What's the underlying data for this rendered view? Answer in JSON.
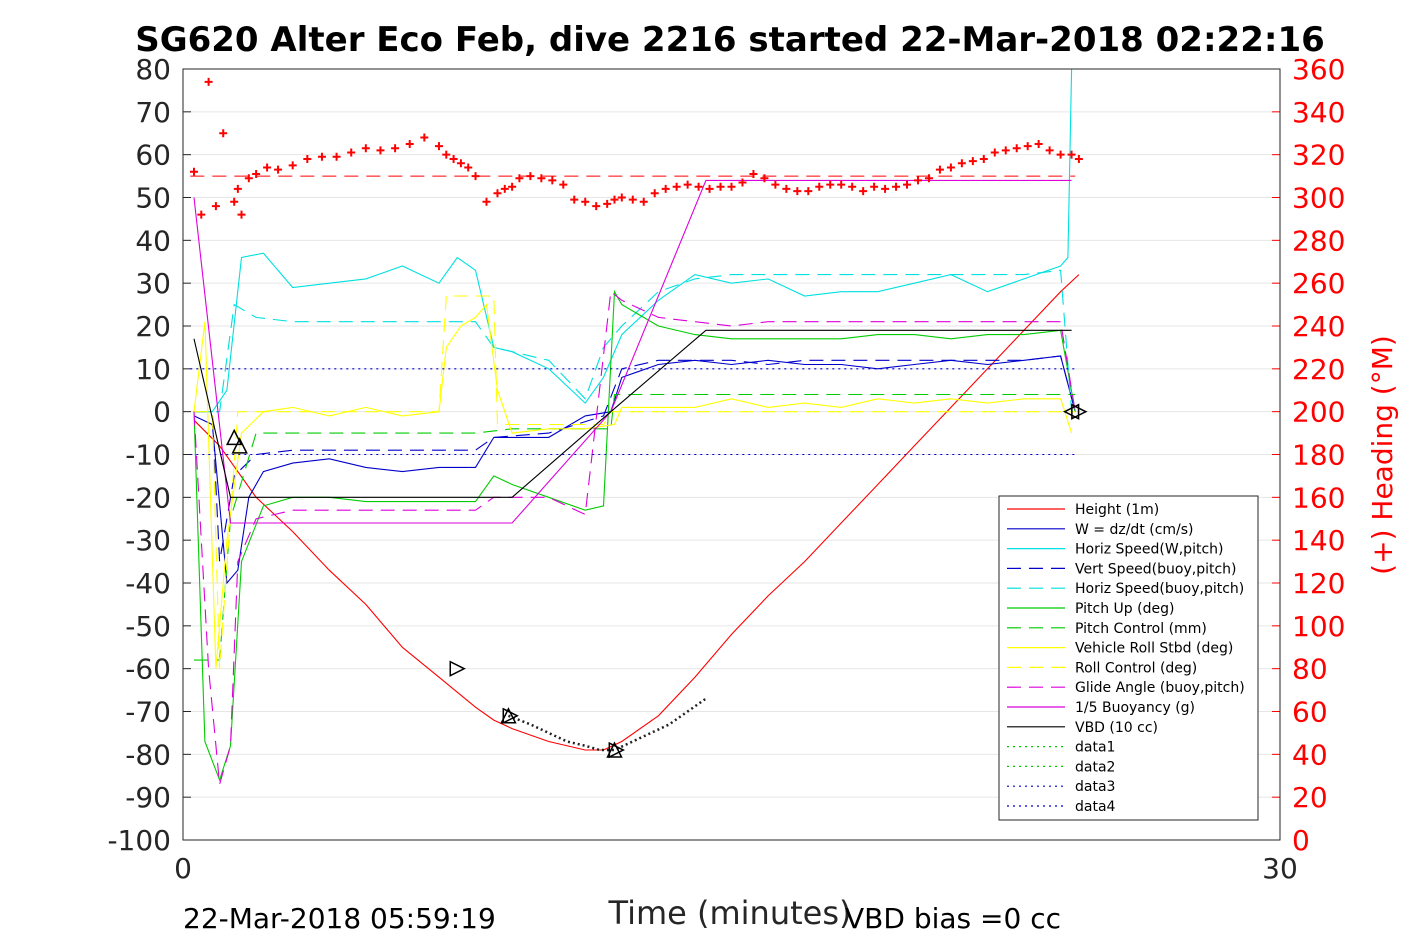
{
  "chart_data": {
    "type": "line",
    "title": "SG620 Alter Eco Feb, dive 2216 started 22-Mar-2018 02:22:16",
    "xlabel": "Time (minutes)",
    "ylabel": "",
    "y2label": "(+) Heading (°M)",
    "xlim": [
      0,
      30
    ],
    "ylim": [
      -100,
      80
    ],
    "y2lim": [
      0,
      360
    ],
    "x_ticks": [
      "0",
      "30"
    ],
    "y_ticks": [
      "80",
      "70",
      "60",
      "50",
      "40",
      "30",
      "20",
      "10",
      "0",
      "-10",
      "-20",
      "-30",
      "-40",
      "-50",
      "-60",
      "-70",
      "-80",
      "-90",
      "-100"
    ],
    "y2_ticks": [
      "360",
      "340",
      "320",
      "300",
      "280",
      "260",
      "240",
      "220",
      "200",
      "180",
      "160",
      "140",
      "120",
      "100",
      "80",
      "60",
      "40",
      "20",
      "0"
    ],
    "grid": "horizontal",
    "legend_position": "bottom-right",
    "footer_left": "22-Mar-2018 05:59:19",
    "footer_right": "VBD bias =0 cc",
    "series": [
      {
        "name": "Height (1m)",
        "color": "#ff0000",
        "style": "solid",
        "x": [
          0.3,
          1.0,
          1.5,
          2.0,
          3.0,
          4.0,
          5.0,
          6.0,
          7.0,
          8.0,
          8.5,
          9.0,
          10.0,
          11.0,
          11.5,
          12.0,
          13.0,
          14.0,
          15.0,
          16.0,
          17.0,
          18.0,
          19.0,
          20.0,
          21.0,
          22.0,
          23.0,
          24.0,
          24.5
        ],
        "y": [
          -2,
          -8,
          -14,
          -20,
          -28,
          -37,
          -45,
          -55,
          -62,
          -69,
          -72,
          -74,
          -77,
          -79,
          -79,
          -77,
          -71,
          -62,
          -52,
          -43,
          -35,
          -26,
          -17,
          -8,
          1,
          10,
          19,
          28,
          32
        ]
      },
      {
        "name": "W = dz/dt (cm/s)",
        "color": "#0000cc",
        "style": "solid",
        "x": [
          0.3,
          0.8,
          1.2,
          1.5,
          1.8,
          2.2,
          3,
          4,
          5,
          6,
          7,
          8,
          8.5,
          9,
          10,
          11,
          11.7,
          12,
          13,
          14,
          15,
          16,
          17,
          18,
          19,
          20,
          21,
          22,
          23,
          24,
          24.4
        ],
        "y": [
          -1,
          -3,
          -40,
          -37,
          -20,
          -14,
          -12,
          -11,
          -13,
          -14,
          -13,
          -13,
          -6,
          -6,
          -6,
          -1,
          0,
          8,
          11,
          12,
          11,
          12,
          11,
          11,
          10,
          11,
          12,
          11,
          12,
          13,
          0
        ]
      },
      {
        "name": "Horiz Speed(W,pitch)",
        "color": "#00e0e0",
        "style": "solid",
        "x": [
          0.3,
          0.8,
          1.2,
          1.6,
          2.2,
          3,
          4,
          5,
          6,
          7,
          7.5,
          8,
          8.5,
          9,
          10,
          11,
          11.5,
          12,
          13,
          14,
          15,
          16,
          17,
          18,
          19,
          20,
          21,
          22,
          23,
          24,
          24.2,
          24.3
        ],
        "y": [
          0,
          0,
          5,
          36,
          37,
          29,
          30,
          31,
          34,
          30,
          36,
          33,
          15,
          14,
          10,
          2,
          8,
          18,
          26,
          32,
          30,
          31,
          27,
          28,
          28,
          30,
          32,
          28,
          31,
          34,
          36,
          80
        ]
      },
      {
        "name": "Vert Speed(buoy,pitch)",
        "color": "#0000cc",
        "style": "dash",
        "x": [
          0.3,
          0.8,
          1.0,
          1.4,
          2.0,
          3,
          4,
          5,
          6,
          7,
          8,
          8.5,
          10,
          11.5,
          12,
          13,
          14,
          15,
          16,
          17,
          18,
          19,
          20,
          21,
          22,
          23,
          24,
          24.4
        ],
        "y": [
          0,
          0,
          -35,
          -15,
          -10,
          -9,
          -9,
          -9,
          -9,
          -9,
          -9,
          -6,
          -5,
          -1,
          10,
          12,
          12,
          12,
          11,
          12,
          12,
          12,
          12,
          12,
          12,
          12,
          13,
          0
        ]
      },
      {
        "name": "Horiz Speed(buoy,pitch)",
        "color": "#00e0e0",
        "style": "dash",
        "x": [
          0.3,
          1.0,
          1.4,
          2.0,
          3,
          4,
          5,
          6,
          7,
          8,
          8.5,
          10,
          11,
          11.5,
          12,
          13,
          14,
          15,
          16,
          17,
          18,
          19,
          20,
          21,
          22,
          23,
          24,
          24.3
        ],
        "y": [
          0,
          0,
          25,
          22,
          21,
          21,
          21,
          21,
          21,
          21,
          15,
          12,
          3,
          15,
          20,
          28,
          31,
          32,
          32,
          32,
          32,
          32,
          32,
          32,
          32,
          32,
          33,
          0
        ]
      },
      {
        "name": "Pitch Up (deg)",
        "color": "#00cc00",
        "style": "solid",
        "x": [
          0.3,
          0.6,
          1.0,
          1.3,
          1.6,
          2.2,
          3,
          4,
          5,
          6,
          7,
          8,
          8.5,
          9,
          10,
          11,
          11.5,
          11.8,
          12,
          13,
          14,
          15,
          16,
          17,
          18,
          19,
          20,
          21,
          22,
          23,
          24,
          24.4
        ],
        "y": [
          0,
          -77,
          -86,
          -78,
          -35,
          -22,
          -20,
          -20,
          -21,
          -21,
          -21,
          -21,
          -15,
          -17,
          -20,
          -23,
          -22,
          28,
          25,
          20,
          18,
          17,
          17,
          17,
          17,
          18,
          18,
          17,
          18,
          18,
          19,
          0
        ]
      },
      {
        "name": "Pitch Control (mm)",
        "color": "#00cc00",
        "style": "dash",
        "x": [
          0.3,
          1.0,
          1.3,
          2.0,
          3,
          4,
          5,
          6,
          7,
          8,
          9,
          10,
          11,
          11.7,
          11.8,
          12,
          14,
          16,
          18,
          20,
          22,
          24,
          24.4
        ],
        "y": [
          -58,
          -58,
          -25,
          -5,
          -5,
          -5,
          -5,
          -5,
          -5,
          -5,
          -4,
          -4,
          -4,
          -4,
          4,
          4,
          4,
          4,
          4,
          4,
          4,
          4,
          4
        ]
      },
      {
        "name": "Vehicle Roll Stbd (deg)",
        "color": "#ffff00",
        "style": "solid",
        "x": [
          0.3,
          0.6,
          0.9,
          1.2,
          1.6,
          2.2,
          3,
          4,
          5,
          6,
          7,
          7.2,
          7.6,
          8,
          8.3,
          8.6,
          9,
          10,
          11,
          11.8,
          12,
          13,
          14,
          15,
          16,
          17,
          18,
          19,
          20,
          21,
          22,
          23,
          24,
          24.3
        ],
        "y": [
          0,
          21,
          -60,
          -30,
          -5,
          0,
          1,
          -1,
          1,
          -1,
          0,
          15,
          20,
          22,
          25,
          5,
          -5,
          -4,
          -4,
          -3,
          1,
          1,
          1,
          3,
          1,
          2,
          1,
          3,
          2,
          3,
          2,
          3,
          3,
          -5
        ]
      },
      {
        "name": "Roll Control (deg)",
        "color": "#ffff00",
        "style": "dash",
        "x": [
          0.3,
          0.8,
          1.0,
          1.5,
          2.0,
          4,
          7,
          7.2,
          7.6,
          8.5,
          8.6,
          9,
          11.5,
          11.7,
          12,
          16,
          20,
          24,
          24.4
        ],
        "y": [
          0,
          0,
          -60,
          0,
          0,
          0,
          0,
          27,
          27,
          27,
          -3,
          -3,
          -3,
          0,
          0,
          0,
          0,
          0,
          0
        ]
      },
      {
        "name": "Glide Angle (buoy,pitch)",
        "color": "#dd00dd",
        "style": "dash",
        "x": [
          0.3,
          0.7,
          1.0,
          1.3,
          1.5,
          2.0,
          3,
          4,
          5,
          6,
          7,
          8,
          8.5,
          10,
          11,
          11.7,
          12,
          13,
          14,
          15,
          16,
          17,
          18,
          19,
          20,
          21,
          22,
          23,
          24,
          24.4
        ],
        "y": [
          0,
          -60,
          -87,
          -78,
          -35,
          -25,
          -23,
          -23,
          -23,
          -23,
          -23,
          -23,
          -20,
          -20,
          -24,
          28,
          26,
          22,
          21,
          20,
          21,
          21,
          21,
          21,
          21,
          21,
          21,
          21,
          21,
          0
        ]
      },
      {
        "name": "1/5 Buoyancy (g)",
        "color": "#dd00dd",
        "style": "solid",
        "x": [
          0.3,
          1.3,
          2.0,
          5,
          8.5,
          9.0,
          11.7,
          14.3,
          15,
          20,
          24.3
        ],
        "y": [
          50,
          -26,
          -26,
          -26,
          -26,
          -26,
          0,
          54,
          54,
          54,
          54
        ]
      },
      {
        "name": "VBD (10 cc)",
        "color": "#000000",
        "style": "solid",
        "x": [
          0.3,
          1.3,
          2.0,
          5,
          8.5,
          9.0,
          11.7,
          14.3,
          15,
          20,
          24.3
        ],
        "y": [
          17,
          -20,
          -20,
          -20,
          -20,
          -20,
          0,
          19,
          19,
          19,
          19
        ]
      },
      {
        "name": "data1",
        "color": "#00cc00",
        "style": "dot",
        "x": [],
        "y": []
      },
      {
        "name": "data2",
        "color": "#00cc00",
        "style": "dot",
        "x": [],
        "y": []
      },
      {
        "name": "data3",
        "color": "#0000cc",
        "style": "dot",
        "x": [
          0.2,
          24.4
        ],
        "y": [
          -10,
          -10
        ]
      },
      {
        "name": "data4",
        "color": "#0000cc",
        "style": "dot",
        "x": [
          0.2,
          24.4
        ],
        "y": [
          10,
          10
        ]
      }
    ],
    "reference_lines": [
      {
        "axis": "y",
        "value": 55,
        "color": "#ff0000",
        "style": "dash",
        "x": [
          0.2,
          24.4
        ]
      }
    ],
    "heading": {
      "marker": "+",
      "color": "#ff0000",
      "x": [
        0.3,
        0.5,
        0.7,
        0.9,
        1.1,
        1.4,
        1.5,
        1.6,
        1.8,
        2.0,
        2.3,
        2.6,
        3.0,
        3.4,
        3.8,
        4.2,
        4.6,
        5.0,
        5.4,
        5.8,
        6.2,
        6.6,
        7.0,
        7.2,
        7.4,
        7.6,
        7.8,
        8.0,
        8.3,
        8.6,
        8.8,
        9.0,
        9.2,
        9.5,
        9.8,
        10.1,
        10.4,
        10.7,
        11.0,
        11.3,
        11.6,
        11.8,
        12.0,
        12.3,
        12.6,
        12.9,
        13.2,
        13.5,
        13.8,
        14.1,
        14.4,
        14.7,
        15.0,
        15.3,
        15.6,
        15.9,
        16.2,
        16.5,
        16.8,
        17.1,
        17.4,
        17.7,
        18.0,
        18.3,
        18.6,
        18.9,
        19.2,
        19.5,
        19.8,
        20.1,
        20.4,
        20.7,
        21.0,
        21.3,
        21.6,
        21.9,
        22.2,
        22.5,
        22.8,
        23.1,
        23.4,
        23.7,
        24.0,
        24.3,
        24.5
      ],
      "y": [
        312,
        292,
        354,
        296,
        330,
        298,
        304,
        292,
        309,
        311,
        314,
        313,
        315,
        318,
        319,
        319,
        321,
        323,
        322,
        323,
        325,
        328,
        324,
        320,
        318,
        316,
        314,
        310,
        298,
        302,
        304,
        305,
        309,
        310,
        309,
        308,
        306,
        299,
        298,
        296,
        297,
        299,
        300,
        299,
        298,
        302,
        304,
        305,
        306,
        305,
        304,
        305,
        305,
        307,
        311,
        309,
        306,
        304,
        303,
        303,
        305,
        306,
        306,
        305,
        303,
        305,
        304,
        305,
        306,
        308,
        309,
        313,
        314,
        316,
        317,
        318,
        321,
        322,
        323,
        324,
        325,
        322,
        320,
        320,
        318
      ]
    },
    "triangle_markers": [
      {
        "shape": "up",
        "x": 1.4,
        "y": -6
      },
      {
        "shape": "up",
        "x": 1.55,
        "y": -8
      },
      {
        "shape": "right",
        "x": 7.5,
        "y": -60
      },
      {
        "shape": "up",
        "x": 8.9,
        "y": -71
      },
      {
        "shape": "right",
        "x": 8.95,
        "y": -71
      },
      {
        "shape": "up",
        "x": 11.8,
        "y": -79
      },
      {
        "shape": "right",
        "x": 11.85,
        "y": -79
      },
      {
        "shape": "left",
        "x": 24.3,
        "y": 0
      },
      {
        "shape": "right",
        "x": 24.5,
        "y": 0
      }
    ],
    "dotted_overlay": {
      "color": "#222222",
      "x": [
        8.9,
        9.5,
        10.0,
        10.5,
        11.0,
        11.4,
        11.8,
        12.3,
        12.8,
        13.3,
        13.8,
        14.3
      ],
      "y": [
        -71,
        -73,
        -75,
        -77,
        -78,
        -79,
        -79,
        -77,
        -75,
        -73,
        -70,
        -67
      ]
    }
  }
}
